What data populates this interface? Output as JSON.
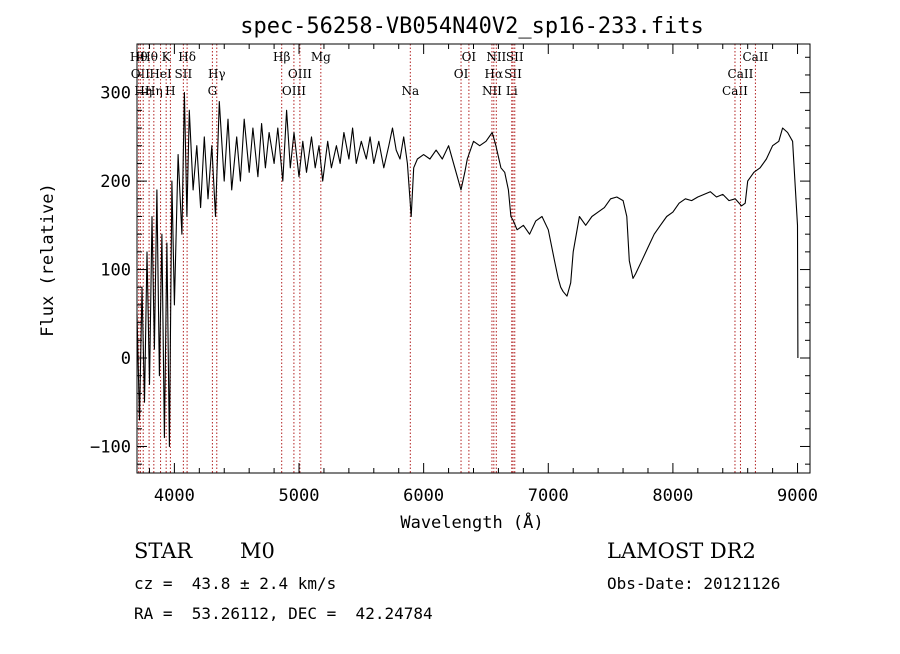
{
  "chart_data": {
    "type": "line",
    "title": "spec-56258-VB054N40V2_sp16-233.fits",
    "xlabel": "Wavelength (Å)",
    "ylabel": "Flux (relative)",
    "xlim": [
      3700,
      9100
    ],
    "ylim": [
      -130,
      355
    ],
    "x_ticks": [
      4000,
      5000,
      6000,
      7000,
      8000,
      9000
    ],
    "y_ticks": [
      -100,
      0,
      100,
      200,
      300
    ],
    "grid": false,
    "series": [
      {
        "color": "#000000",
        "points": [
          [
            3700,
            50
          ],
          [
            3720,
            -70
          ],
          [
            3740,
            80
          ],
          [
            3760,
            -50
          ],
          [
            3780,
            120
          ],
          [
            3800,
            -30
          ],
          [
            3820,
            160
          ],
          [
            3840,
            10
          ],
          [
            3860,
            190
          ],
          [
            3880,
            -20
          ],
          [
            3900,
            140
          ],
          [
            3920,
            -90
          ],
          [
            3940,
            130
          ],
          [
            3960,
            -100
          ],
          [
            3980,
            200
          ],
          [
            4000,
            60
          ],
          [
            4030,
            230
          ],
          [
            4060,
            140
          ],
          [
            4080,
            300
          ],
          [
            4100,
            160
          ],
          [
            4120,
            280
          ],
          [
            4150,
            190
          ],
          [
            4180,
            240
          ],
          [
            4210,
            170
          ],
          [
            4240,
            250
          ],
          [
            4270,
            180
          ],
          [
            4300,
            240
          ],
          [
            4330,
            160
          ],
          [
            4360,
            290
          ],
          [
            4400,
            200
          ],
          [
            4430,
            270
          ],
          [
            4460,
            190
          ],
          [
            4500,
            250
          ],
          [
            4530,
            200
          ],
          [
            4560,
            270
          ],
          [
            4600,
            210
          ],
          [
            4630,
            260
          ],
          [
            4670,
            205
          ],
          [
            4700,
            265
          ],
          [
            4730,
            215
          ],
          [
            4760,
            255
          ],
          [
            4800,
            220
          ],
          [
            4830,
            260
          ],
          [
            4870,
            200
          ],
          [
            4900,
            280
          ],
          [
            4930,
            215
          ],
          [
            4960,
            255
          ],
          [
            5000,
            205
          ],
          [
            5030,
            245
          ],
          [
            5060,
            210
          ],
          [
            5100,
            250
          ],
          [
            5130,
            215
          ],
          [
            5160,
            240
          ],
          [
            5190,
            200
          ],
          [
            5230,
            245
          ],
          [
            5260,
            215
          ],
          [
            5300,
            240
          ],
          [
            5330,
            220
          ],
          [
            5360,
            255
          ],
          [
            5400,
            225
          ],
          [
            5430,
            260
          ],
          [
            5460,
            220
          ],
          [
            5500,
            245
          ],
          [
            5540,
            225
          ],
          [
            5570,
            250
          ],
          [
            5600,
            220
          ],
          [
            5640,
            245
          ],
          [
            5680,
            215
          ],
          [
            5720,
            240
          ],
          [
            5750,
            260
          ],
          [
            5780,
            235
          ],
          [
            5810,
            225
          ],
          [
            5840,
            250
          ],
          [
            5870,
            220
          ],
          [
            5900,
            160
          ],
          [
            5920,
            215
          ],
          [
            5950,
            225
          ],
          [
            6000,
            230
          ],
          [
            6050,
            225
          ],
          [
            6100,
            235
          ],
          [
            6150,
            225
          ],
          [
            6200,
            240
          ],
          [
            6250,
            215
          ],
          [
            6300,
            190
          ],
          [
            6330,
            210
          ],
          [
            6350,
            225
          ],
          [
            6400,
            245
          ],
          [
            6450,
            240
          ],
          [
            6500,
            245
          ],
          [
            6550,
            255
          ],
          [
            6580,
            240
          ],
          [
            6620,
            215
          ],
          [
            6650,
            210
          ],
          [
            6680,
            190
          ],
          [
            6700,
            160
          ],
          [
            6720,
            155
          ],
          [
            6750,
            145
          ],
          [
            6800,
            150
          ],
          [
            6850,
            140
          ],
          [
            6900,
            155
          ],
          [
            6950,
            160
          ],
          [
            7000,
            145
          ],
          [
            7050,
            110
          ],
          [
            7080,
            90
          ],
          [
            7100,
            80
          ],
          [
            7120,
            75
          ],
          [
            7150,
            70
          ],
          [
            7180,
            85
          ],
          [
            7200,
            120
          ],
          [
            7250,
            160
          ],
          [
            7300,
            150
          ],
          [
            7350,
            160
          ],
          [
            7400,
            165
          ],
          [
            7450,
            170
          ],
          [
            7500,
            180
          ],
          [
            7550,
            182
          ],
          [
            7600,
            178
          ],
          [
            7630,
            160
          ],
          [
            7650,
            110
          ],
          [
            7680,
            90
          ],
          [
            7700,
            95
          ],
          [
            7750,
            110
          ],
          [
            7800,
            125
          ],
          [
            7850,
            140
          ],
          [
            7900,
            150
          ],
          [
            7950,
            160
          ],
          [
            8000,
            165
          ],
          [
            8050,
            175
          ],
          [
            8100,
            180
          ],
          [
            8150,
            178
          ],
          [
            8200,
            182
          ],
          [
            8250,
            185
          ],
          [
            8300,
            188
          ],
          [
            8350,
            182
          ],
          [
            8400,
            185
          ],
          [
            8450,
            178
          ],
          [
            8500,
            180
          ],
          [
            8550,
            172
          ],
          [
            8580,
            175
          ],
          [
            8600,
            200
          ],
          [
            8650,
            210
          ],
          [
            8700,
            215
          ],
          [
            8750,
            225
          ],
          [
            8800,
            240
          ],
          [
            8850,
            245
          ],
          [
            8880,
            260
          ],
          [
            8920,
            255
          ],
          [
            8960,
            245
          ],
          [
            9000,
            150
          ],
          [
            9003,
            0
          ]
        ]
      }
    ],
    "line_markers": [
      {
        "wl": 3714,
        "label": "Hθ",
        "tier": 0
      },
      {
        "wl": 3727,
        "label": "OII",
        "tier": 1
      },
      {
        "wl": 3750,
        "label": "Hη",
        "tier": 2
      },
      {
        "wl": 3797,
        "label": "Hθ",
        "tier": 0
      },
      {
        "wl": 3835,
        "label": "Hη",
        "tier": 2
      },
      {
        "wl": 3889,
        "label": "HeI",
        "tier": 1
      },
      {
        "wl": 3934,
        "label": "K",
        "tier": 0
      },
      {
        "wl": 3968,
        "label": "H",
        "tier": 2
      },
      {
        "wl": 4072,
        "label": "SII",
        "tier": 1
      },
      {
        "wl": 4102,
        "label": "Hδ",
        "tier": 0
      },
      {
        "wl": 4305,
        "label": "G",
        "tier": 2
      },
      {
        "wl": 4340,
        "label": "Hγ",
        "tier": 1
      },
      {
        "wl": 4861,
        "label": "Hβ",
        "tier": 0
      },
      {
        "wl": 4959,
        "label": "OIII",
        "tier": 2
      },
      {
        "wl": 5007,
        "label": "OIII",
        "tier": 1
      },
      {
        "wl": 5175,
        "label": "Mg",
        "tier": 0
      },
      {
        "wl": 5893,
        "label": "Na",
        "tier": 2
      },
      {
        "wl": 6300,
        "label": "OI",
        "tier": 1
      },
      {
        "wl": 6363,
        "label": "OI",
        "tier": 0
      },
      {
        "wl": 6548,
        "label": "NII",
        "tier": 2
      },
      {
        "wl": 6563,
        "label": "Hα",
        "tier": 1
      },
      {
        "wl": 6583,
        "label": "NII",
        "tier": 0
      },
      {
        "wl": 6707,
        "label": "Li",
        "tier": 2
      },
      {
        "wl": 6717,
        "label": "SII",
        "tier": 1
      },
      {
        "wl": 6731,
        "label": "SII",
        "tier": 0
      },
      {
        "wl": 8498,
        "label": "CaII",
        "tier": 2
      },
      {
        "wl": 8542,
        "label": "CaII",
        "tier": 1
      },
      {
        "wl": 8662,
        "label": "CaII",
        "tier": 0
      }
    ]
  },
  "info": {
    "object_class": "STAR",
    "subclass": "M0",
    "redshift": "cz =  43.8 ± 2.4 km/s",
    "coords": "RA =  53.26112, DEC =  42.24784",
    "survey": "LAMOST DR2",
    "obs_date": "Obs-Date: 20121126"
  }
}
